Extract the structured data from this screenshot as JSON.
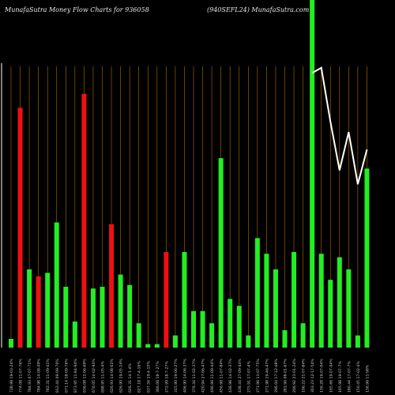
{
  "header": {
    "title_left": "MunafaSutra  Money Flow  Charts for 936058",
    "title_right": "(940SEFL24) MunafaSutra.com"
  },
  "colors": {
    "background": "#000000",
    "up": "#22ee22",
    "down": "#ee1111",
    "gridline": "#b36b00",
    "price_line": "#ffffff",
    "label": "#cccccc"
  },
  "chart_data": {
    "type": "bar",
    "title": "MunafaSutra  Money Flow  Charts for 936058",
    "subtitle": "(940SEFL24) MunafaSutra.com",
    "ylim": [
      0,
      100
    ],
    "grid": true,
    "categories": [
      "738.98 19-03-24%",
      "774.08 11-07-76%",
      "784.93 07-07-71%",
      "784.98 14-08-49%",
      "782.31 11-09-41%",
      "812.44 09-09-70%",
      "671.14 18-09-76%",
      "873.95 11-84-94%",
      "636.08 12-06-69%",
      "676.05 14-02-94%",
      "698.95 11-05-4%",
      "626.93 14-08-62%",
      "626.90 19-05-14%",
      "626.31 14-1-4%",
      "627.18 17-4-16%",
      "637.56 19-4-15%",
      "366.06 18-7-27%",
      "272.99 18-7-27%",
      "315.90 19-06-27%",
      "406.90 14-06-37%",
      "376.34 11-02-37%",
      "420.94 27-06-47%",
      "406.96 11-09-44%",
      "456.98 11-07-84%",
      "436.98 14-02-37%",
      "438.44 27-09-44%",
      "275.91 17-07-4%",
      "271.96 13-07-75%",
      "271.98 19-46-47%",
      "296.04 17-12-48%",
      "281.96 08-01-67%",
      "206.92 23-01-24%",
      "106.22 21-07-84%",
      "303.23 12-17-54%",
      "136.28 19-07-04%",
      "165.66 19-07-04%",
      "165.98 19-07-7%",
      "180.44 17-07-7%",
      "150.45 17-02-4%",
      "136.96 11-98%"
    ],
    "up": [
      true,
      false,
      true,
      false,
      true,
      true,
      true,
      true,
      false,
      true,
      true,
      false,
      true,
      true,
      true,
      true,
      true,
      false,
      true,
      true,
      true,
      true,
      true,
      true,
      true,
      true,
      true,
      true,
      true,
      true,
      true,
      true,
      true,
      true,
      true,
      true,
      true,
      true,
      true,
      true
    ],
    "values": [
      2.5,
      69,
      22.5,
      20.5,
      21.5,
      36,
      17.5,
      7.5,
      73,
      17,
      17.5,
      35.5,
      21,
      18,
      7,
      1,
      1,
      27.5,
      3.5,
      27.5,
      10.5,
      10.5,
      7,
      54.5,
      14,
      12,
      3.5,
      31.5,
      27,
      22.5,
      5,
      27.5,
      7,
      100,
      27,
      19.5,
      26,
      22.5,
      3.5,
      51.5
    ],
    "price_line": {
      "series": [
        {
          "x_index": 33,
          "y": 79
        },
        {
          "x_index": 34,
          "y": 80.5
        },
        {
          "x_index": 35,
          "y": 65
        },
        {
          "x_index": 36,
          "y": 51
        },
        {
          "x_index": 37,
          "y": 62
        },
        {
          "x_index": 38,
          "y": 47
        },
        {
          "x_index": 39,
          "y": 57
        }
      ]
    }
  }
}
